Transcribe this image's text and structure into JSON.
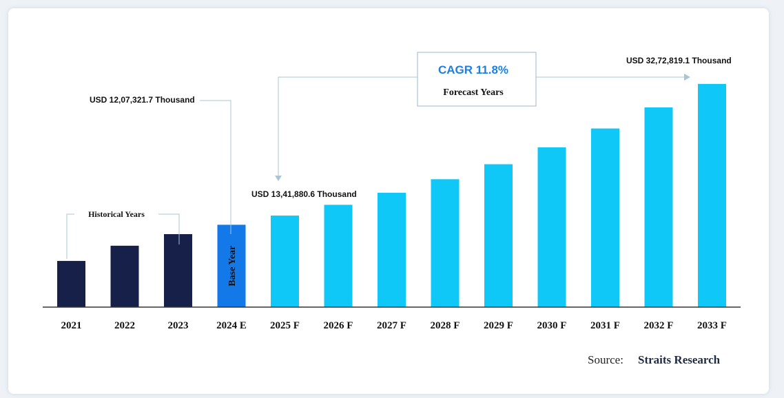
{
  "chart_data": {
    "type": "bar",
    "categories": [
      "2021",
      "2022",
      "2023",
      "2024 E",
      "2025 F",
      "2026 F",
      "2027 F",
      "2028 F",
      "2029 F",
      "2030 F",
      "2031 F",
      "2032 F",
      "2033 F"
    ],
    "values": [
      677230,
      900000,
      1070000,
      1207321.7,
      1341880.6,
      1500000,
      1677000,
      1875000,
      2095000,
      2342000,
      2619000,
      2928000,
      3272819.1
    ],
    "ylim": [
      0,
      4200000
    ],
    "grid": false,
    "colors": {
      "historical": "#172048",
      "base": "#1479e8",
      "forecast": "#0fc8f8",
      "axis": "#333333",
      "connector": "#a9c4d6",
      "cagr_text": "#1b7fe6"
    },
    "bar_groups": [
      "historical",
      "historical",
      "historical",
      "base",
      "forecast",
      "forecast",
      "forecast",
      "forecast",
      "forecast",
      "forecast",
      "forecast",
      "forecast",
      "forecast"
    ],
    "annotations": {
      "base_year_value": "USD 12,07,321.7 Thousand",
      "first_forecast_value": "USD 13,41,880.6 Thousand",
      "final_value": "USD 32,72,819.1 Thousand",
      "base_year_bar_label": "Base Year",
      "historical_label": "Historical Years",
      "cagr": "CAGR 11.8%",
      "forecast_label": "Forecast Years"
    }
  },
  "source": {
    "prefix": "Source:",
    "name": "Straits Research"
  }
}
